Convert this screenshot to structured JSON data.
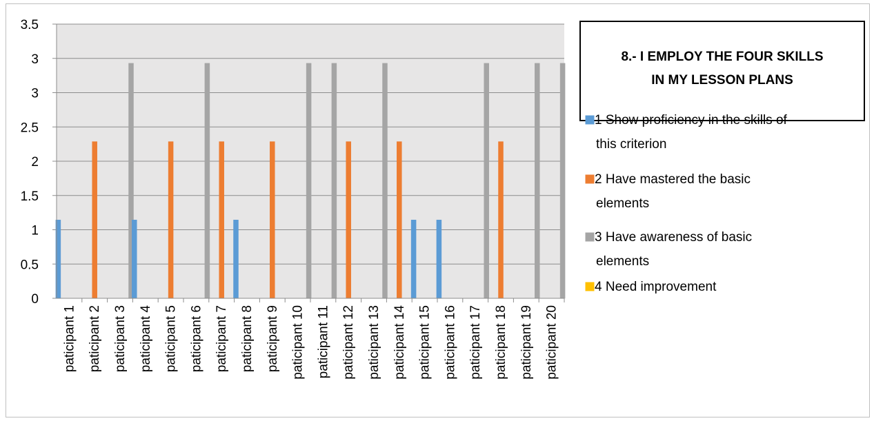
{
  "chart_data": {
    "type": "bar",
    "title_lines": [
      "8.- I EMPLOY THE FOUR SKILLS",
      "IN MY LESSON PLANS"
    ],
    "categories": [
      "paticipant 1",
      "paticipant 2",
      "paticipant 3",
      "paticipant 4",
      "paticipant 5",
      "paticipant 6",
      "paticipant 7",
      "paticipant 8",
      "paticipant 9",
      "paticipant 10",
      "paticipant 11",
      "paticipant 12",
      "paticipant 13",
      "paticipant 14",
      "paticipant 15",
      "paticipant 16",
      "paticipant 17",
      "paticipant 18",
      "paticipant 19",
      "paticipant 20"
    ],
    "y_ticks": [
      "0",
      "0.5",
      "1",
      "1.5",
      "2",
      "2.5",
      "3",
      "3",
      "3.5"
    ],
    "ylim": [
      0,
      3.5
    ],
    "grid": true,
    "legend_position": "right",
    "series": [
      {
        "name": "1 Show proficiency in the skills of this criterion",
        "legend_lines": [
          " 1 Show proficiency in the skills of",
          "this criterion"
        ],
        "color": "#5b9bd5",
        "values": [
          1,
          null,
          null,
          1,
          null,
          null,
          null,
          1,
          null,
          null,
          null,
          null,
          null,
          null,
          1,
          1,
          null,
          null,
          null,
          null
        ]
      },
      {
        "name": "2 Have mastered the basic elements",
        "legend_lines": [
          "2 Have mastered the basic",
          "elements"
        ],
        "color": "#ed7d31",
        "values": [
          null,
          2,
          null,
          null,
          2,
          null,
          2,
          null,
          2,
          null,
          null,
          2,
          null,
          2,
          null,
          null,
          null,
          2,
          null,
          null
        ]
      },
      {
        "name": "3 Have awareness of basic elements",
        "legend_lines": [
          "3 Have awareness of basic",
          "elements"
        ],
        "color": "#a5a5a5",
        "values": [
          null,
          null,
          3,
          null,
          null,
          3,
          null,
          null,
          null,
          3,
          3,
          null,
          3,
          null,
          null,
          null,
          3,
          null,
          3,
          3
        ]
      },
      {
        "name": "4 Need improvement",
        "legend_lines": [
          "4 Need improvement"
        ],
        "color": "#ffc000",
        "values": [
          null,
          null,
          null,
          null,
          null,
          null,
          null,
          null,
          null,
          null,
          null,
          null,
          null,
          null,
          null,
          null,
          null,
          null,
          null,
          null
        ]
      }
    ]
  }
}
